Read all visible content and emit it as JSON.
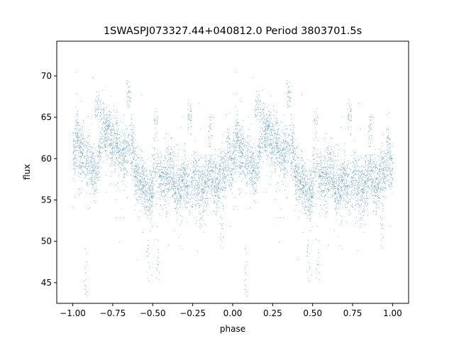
{
  "chart_data": {
    "type": "scatter",
    "title": "1SWASPJ073327.44+040812.0 Period 3803701.5s",
    "xlabel": "phase",
    "ylabel": "flux",
    "xlim": [
      -1.1,
      1.1
    ],
    "ylim": [
      42.5,
      74.2
    ],
    "xticks": [
      -1.0,
      -0.75,
      -0.5,
      -0.25,
      0.0,
      0.25,
      0.5,
      0.75,
      1.0
    ],
    "xtick_labels": [
      "−1.00",
      "−0.75",
      "−0.50",
      "−0.25",
      "0.00",
      "0.25",
      "0.50",
      "0.75",
      "1.00"
    ],
    "yticks": [
      45,
      50,
      55,
      60,
      65,
      70
    ],
    "ytick_labels": [
      "45",
      "50",
      "55",
      "60",
      "65",
      "70"
    ],
    "grid": false,
    "series": [
      {
        "color": "#1f77b4",
        "marker": "dot",
        "phase_range": [
          -1.0,
          1.0
        ],
        "profile": [
          [
            0.0,
            60.5
          ],
          [
            0.03,
            61.5
          ],
          [
            0.06,
            60.0
          ],
          [
            0.09,
            59.0
          ],
          [
            0.12,
            58.5
          ],
          [
            0.15,
            59.5
          ],
          [
            0.18,
            62.5
          ],
          [
            0.2,
            64.0
          ],
          [
            0.23,
            63.0
          ],
          [
            0.26,
            61.0
          ],
          [
            0.29,
            60.0
          ],
          [
            0.32,
            59.5
          ],
          [
            0.35,
            60.5
          ],
          [
            0.38,
            59.5
          ],
          [
            0.41,
            58.5
          ],
          [
            0.45,
            57.5
          ],
          [
            0.48,
            57.0
          ],
          [
            0.52,
            57.5
          ],
          [
            0.56,
            57.0
          ],
          [
            0.6,
            57.5
          ],
          [
            0.63,
            56.5
          ],
          [
            0.66,
            57.0
          ],
          [
            0.7,
            58.0
          ],
          [
            0.74,
            57.5
          ],
          [
            0.78,
            56.0
          ],
          [
            0.82,
            56.5
          ],
          [
            0.86,
            58.0
          ],
          [
            0.9,
            57.5
          ],
          [
            0.94,
            58.5
          ],
          [
            0.97,
            60.0
          ],
          [
            1.0,
            60.5
          ]
        ],
        "bright_clusters": [
          [
            0.15,
            66.3
          ],
          [
            0.18,
            65.5
          ],
          [
            0.22,
            64.5
          ],
          [
            0.35,
            67.8
          ],
          [
            0.52,
            64.5
          ],
          [
            0.73,
            65.0
          ],
          [
            0.86,
            63.5
          ],
          [
            0.97,
            62.5
          ]
        ],
        "faint_clusters": [
          [
            0.47,
            47.5
          ],
          [
            0.53,
            48.0
          ],
          [
            0.8,
            53.5
          ],
          [
            0.93,
            52.0
          ],
          [
            0.08,
            46.0
          ]
        ]
      }
    ]
  }
}
